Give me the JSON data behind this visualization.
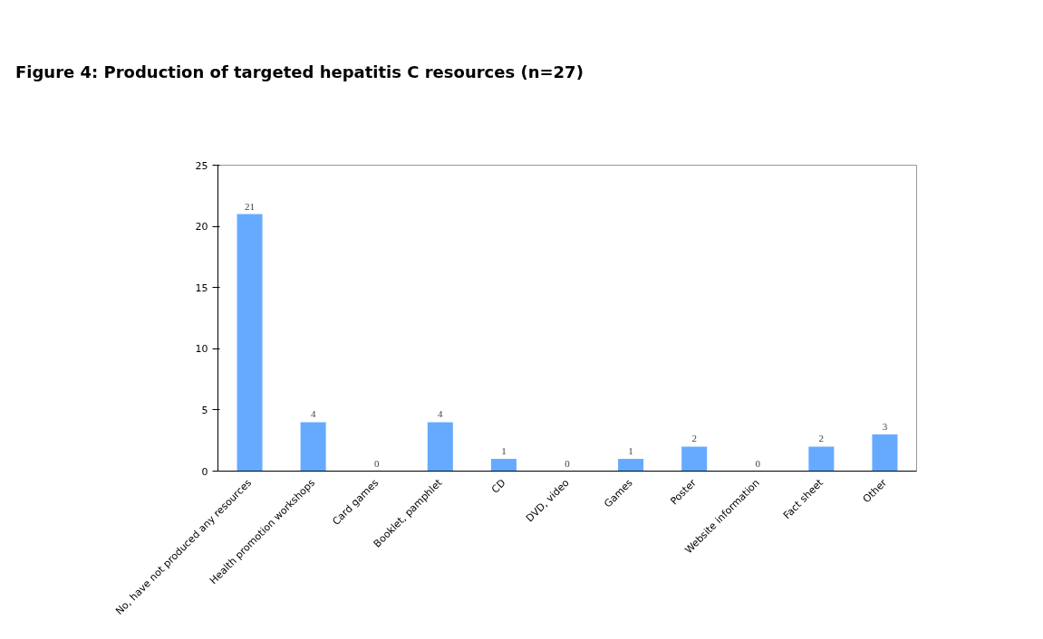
{
  "chart_data": {
    "type": "bar",
    "title": "Figure 4: Production of targeted hepatitis C resources (n=27)",
    "categories": [
      "No, have not produced any resources",
      "Health promotion workshops",
      "Card games",
      "Booklet, pamphlet",
      "CD",
      "DVD, video",
      "Games",
      "Poster",
      "Website information",
      "Fact sheet",
      "Other"
    ],
    "values": [
      21,
      4,
      0,
      4,
      1,
      0,
      1,
      2,
      0,
      2,
      3
    ],
    "color": "#66aaff",
    "ylim": [
      0,
      25
    ],
    "yticks": [
      0,
      5,
      10,
      15,
      20,
      25
    ],
    "grid": false,
    "data_labels": true
  }
}
